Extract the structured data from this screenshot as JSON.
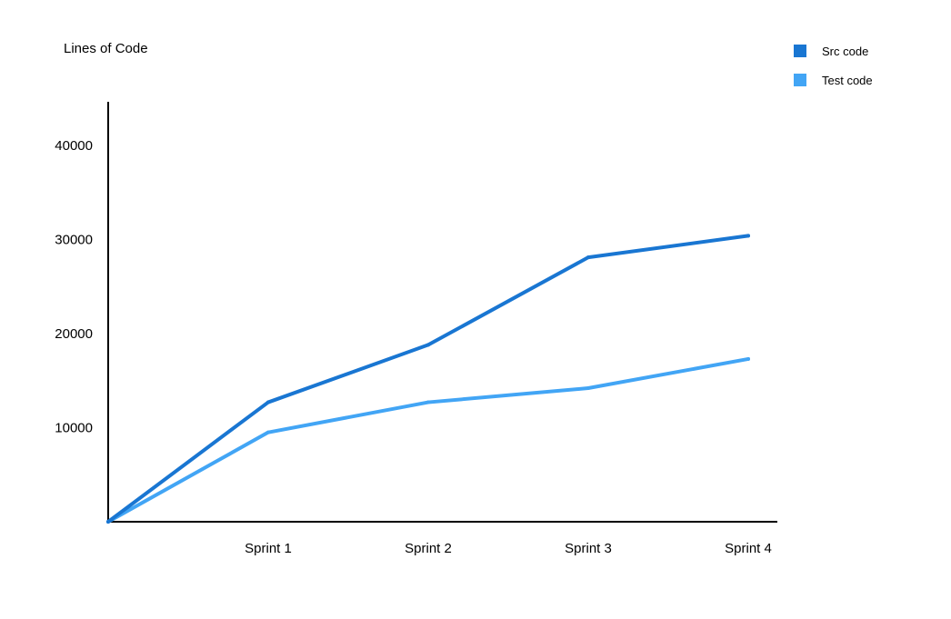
{
  "chart_data": {
    "type": "line",
    "title": "Lines of Code",
    "xlabel": "",
    "ylabel": "",
    "x": [
      "",
      "Sprint 1",
      "Sprint 2",
      "Sprint 3",
      "Sprint 4"
    ],
    "x_tick_labels": [
      "Sprint 1",
      "Sprint 2",
      "Sprint 3",
      "Sprint 4"
    ],
    "y_ticks": [
      10000,
      20000,
      30000,
      40000
    ],
    "ylim": [
      0,
      44000
    ],
    "grid": false,
    "legend_position": "top-right",
    "series": [
      {
        "name": "Src code",
        "color": "#1976D2",
        "values": [
          0,
          12700,
          18800,
          28100,
          30400
        ]
      },
      {
        "name": "Test code",
        "color": "#42A5F5",
        "values": [
          0,
          9500,
          12700,
          14200,
          17300
        ]
      }
    ]
  }
}
